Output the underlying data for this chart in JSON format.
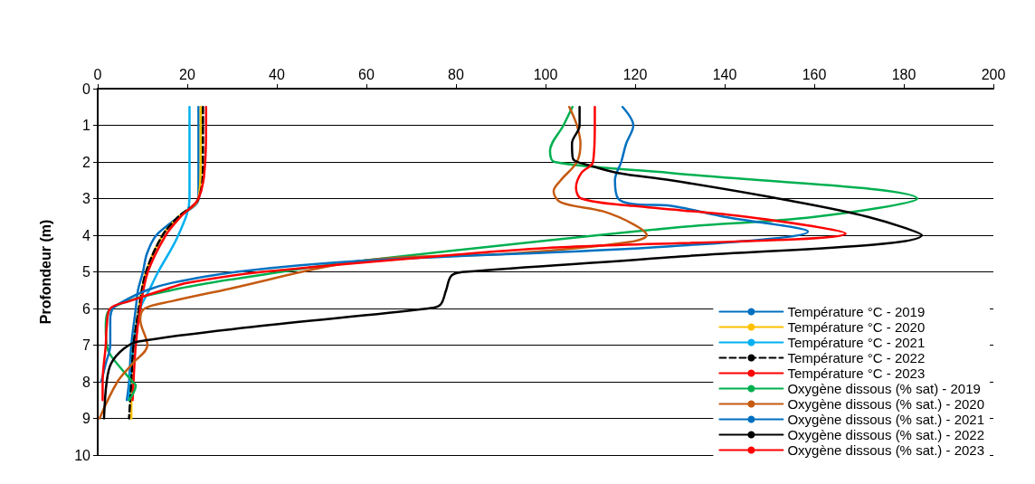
{
  "chart_data": {
    "type": "line",
    "ylabel": "Profondeur (m)",
    "xlim": [
      0,
      200
    ],
    "xticks": [
      0,
      20,
      40,
      60,
      80,
      100,
      120,
      140,
      160,
      180,
      200
    ],
    "ylim": [
      10,
      0
    ],
    "yticks": [
      0,
      1,
      2,
      3,
      4,
      5,
      6,
      7,
      8,
      9,
      10
    ],
    "grid": "y",
    "legend": "bottom right",
    "marker": "none",
    "series": [
      {
        "name": "Température °C - 2019",
        "color": "#0070c0",
        "x": [
          22.5,
          22.5,
          22.5,
          22.5,
          18,
          13.1,
          11,
          10.1,
          9,
          8.5,
          7.5,
          7,
          6.5
        ],
        "values": [
          0.5,
          1,
          2,
          3,
          3.5,
          4,
          4.5,
          5,
          5.5,
          6,
          7,
          8,
          8.5
        ]
      },
      {
        "name": "Température °C - 2020",
        "color": "#ffc000",
        "x": [
          23,
          23,
          23,
          22.5,
          18,
          14.5,
          10.8,
          9.2,
          8,
          7.5,
          7.5
        ],
        "values": [
          0.5,
          1,
          2,
          3,
          3.5,
          4,
          5,
          6,
          7,
          8,
          9
        ]
      },
      {
        "name": "Température °C - 2021",
        "color": "#00b0f0",
        "x": [
          20.5,
          20.5,
          20.5,
          20.5,
          18,
          13.5,
          11.5,
          9.5,
          8,
          7
        ],
        "values": [
          0.5,
          1,
          2,
          3,
          4,
          5,
          5.5,
          6,
          7,
          8.5
        ]
      },
      {
        "name": "Température °C - 2022",
        "color": "#000000",
        "line_style": "dashed",
        "x": [
          23.5,
          23.5,
          23.5,
          22.5,
          18,
          14.5,
          10.8,
          9.2,
          8,
          7.5,
          7
        ],
        "values": [
          0.5,
          1,
          2,
          3,
          3.5,
          4,
          5,
          6,
          7,
          8,
          9
        ]
      },
      {
        "name": "Température °C - 2023",
        "color": "#ff0000",
        "x": [
          24.2,
          24.2,
          24,
          22.5,
          18.5,
          15.2,
          11.2,
          9.5,
          8.5,
          7.8
        ],
        "values": [
          0.5,
          1,
          2,
          3,
          3.5,
          4,
          5,
          6,
          7,
          8.5
        ]
      },
      {
        "name": "Oxygène dissous (% sat) - 2019",
        "color": "#00b050",
        "x": [
          106,
          104,
          101,
          102,
          128,
          183,
          160,
          128,
          59,
          41,
          16.5,
          3,
          1.8,
          2,
          3,
          7.8,
          8.5,
          7
        ],
        "values": [
          0.5,
          1,
          1.7,
          2,
          2.3,
          3,
          3.5,
          3.8,
          4.7,
          5,
          5.5,
          6,
          6.5,
          7,
          7.3,
          8,
          8.1,
          8.5
        ]
      },
      {
        "name": "Oxygène dissous (% sat.) - 2020",
        "color": "#c55a11",
        "x": [
          105.3,
          107,
          107.8,
          107,
          103.4,
          101.8,
          103.4,
          112.9,
          119.6,
          122.6,
          118,
          92.7,
          59,
          28,
          16.6,
          10.5,
          9.5,
          11.1,
          7.8,
          4.4,
          0.4
        ],
        "values": [
          0.5,
          1,
          1.5,
          2,
          2.5,
          2.8,
          3.1,
          3.35,
          3.7,
          4,
          4.2,
          4.5,
          4.7,
          5.5,
          5.8,
          6,
          6.3,
          7,
          7.5,
          8,
          9
        ]
      },
      {
        "name": "Oxygène dissous (% sat.) - 2021",
        "color": "#0070c0",
        "x": [
          117.2,
          119.6,
          118,
          116.9,
          115.5,
          116.2,
          119.6,
          128,
          140,
          158.6,
          128,
          59,
          31,
          16.6,
          11,
          5.8,
          3.4,
          2.8,
          2.8,
          1.8,
          0.8
        ],
        "values": [
          0.5,
          1,
          1.5,
          2,
          2.5,
          3,
          3.15,
          3.2,
          3.5,
          3.9,
          4.3,
          4.7,
          5,
          5.3,
          5.5,
          5.8,
          6,
          6.3,
          7,
          7.5,
          8
        ]
      },
      {
        "name": "Oxygène dissous (% sat.) - 2022",
        "color": "#000000",
        "x": [
          107.6,
          107.6,
          105.9,
          106.1,
          110,
          116.2,
          128,
          152,
          172,
          184,
          128,
          82,
          79,
          77.8,
          76.5,
          73.8,
          34.7,
          9.1,
          5.8,
          3,
          2,
          1.4
        ],
        "values": [
          0.5,
          1,
          1.5,
          1.9,
          2.1,
          2.3,
          2.5,
          3,
          3.5,
          4,
          4.6,
          5,
          5.1,
          5.5,
          5.9,
          6,
          6.5,
          6.9,
          7.1,
          7.5,
          8,
          9
        ]
      },
      {
        "name": "Oxygène dissous (% sat.) - 2023",
        "color": "#ff0000",
        "x": [
          111,
          111,
          110.6,
          108,
          106.8,
          108,
          119.6,
          145,
          167,
          100,
          83,
          36.8,
          20,
          14.5,
          7.1,
          2.8,
          2,
          1.8,
          1.1,
          1.1
        ],
        "values": [
          0.5,
          1,
          2,
          2.3,
          2.7,
          3,
          3.2,
          3.5,
          3.95,
          4.35,
          4.5,
          5,
          5.3,
          5.5,
          5.8,
          6,
          6.5,
          7,
          8,
          8.5
        ]
      }
    ]
  }
}
